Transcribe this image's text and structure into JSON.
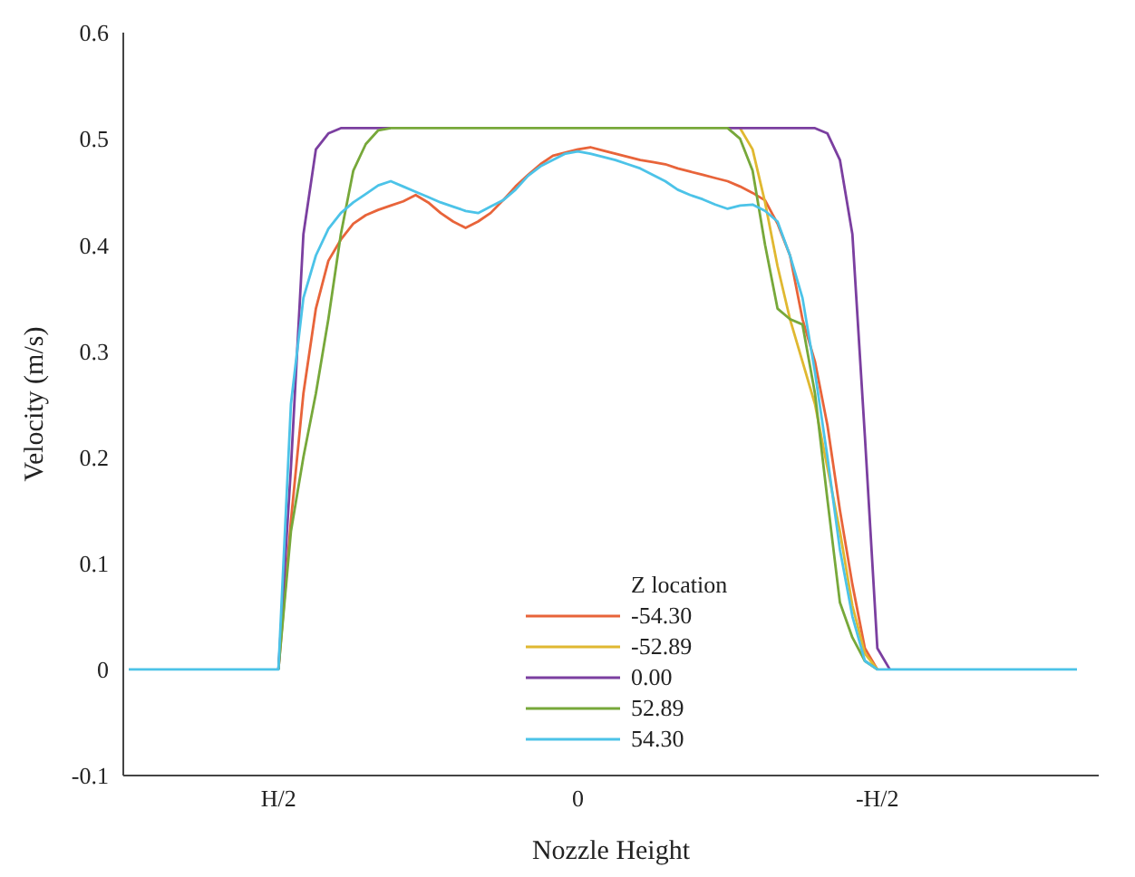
{
  "chart_data": {
    "type": "line",
    "xlabel": "Nozzle Height",
    "ylabel": "Velocity (m/s)",
    "legend_title": "Z location",
    "legend": "bottom",
    "grid": false,
    "marker": "none",
    "line_style": "solid",
    "categories": [
      null,
      null,
      null,
      null,
      null,
      null,
      null,
      null,
      null,
      null,
      null,
      null,
      "H/2",
      null,
      null,
      null,
      null,
      null,
      null,
      null,
      null,
      null,
      null,
      null,
      null,
      null,
      null,
      null,
      null,
      null,
      null,
      null,
      null,
      null,
      null,
      null,
      "0",
      null,
      null,
      null,
      null,
      null,
      null,
      null,
      null,
      null,
      null,
      null,
      null,
      null,
      null,
      null,
      null,
      null,
      null,
      null,
      null,
      null,
      null,
      null,
      "-H/2",
      null,
      null,
      null,
      null,
      null,
      null,
      null,
      null,
      null,
      null,
      null,
      null,
      null,
      null,
      null,
      null
    ],
    "ylim": [
      -0.1,
      0.6
    ],
    "yticks": [
      -0.1,
      0,
      0.1,
      0.2,
      0.3,
      0.4,
      0.5,
      0.6
    ],
    "series": [
      {
        "name": "-54.30",
        "color": "#e8643a",
        "values": [
          null,
          null,
          null,
          null,
          null,
          null,
          null,
          null,
          null,
          null,
          null,
          null,
          0,
          0.14,
          0.26,
          0.34,
          0.385,
          0.405,
          0.42,
          0.428,
          0.433,
          0.437,
          0.441,
          0.447,
          0.44,
          0.43,
          0.422,
          0.416,
          0.422,
          0.43,
          0.442,
          0.455,
          0.466,
          0.476,
          0.484,
          0.487,
          0.49,
          0.492,
          0.489,
          0.486,
          0.483,
          0.48,
          0.478,
          0.476,
          0.472,
          0.469,
          0.466,
          0.463,
          0.46,
          0.455,
          0.449,
          0.442,
          0.42,
          0.39,
          0.33,
          0.29,
          0.23,
          0.15,
          0.08,
          0.02,
          0,
          null,
          null,
          null,
          null,
          null,
          null,
          null,
          null,
          null,
          null,
          null,
          null,
          null,
          null,
          null,
          null
        ]
      },
      {
        "name": "-52.89",
        "color": "#e0b830",
        "values": [
          null,
          null,
          null,
          null,
          null,
          null,
          null,
          null,
          null,
          null,
          null,
          null,
          null,
          null,
          null,
          null,
          null,
          null,
          null,
          null,
          null,
          null,
          null,
          null,
          null,
          null,
          null,
          null,
          null,
          null,
          null,
          null,
          null,
          null,
          null,
          null,
          null,
          null,
          null,
          null,
          null,
          null,
          null,
          null,
          null,
          null,
          null,
          null,
          null,
          0.51,
          0.49,
          0.44,
          0.38,
          0.33,
          0.29,
          0.25,
          0.19,
          0.13,
          0.06,
          0.015,
          0,
          null,
          null,
          null,
          null,
          null,
          null,
          null,
          null,
          null,
          null,
          null,
          null,
          null,
          null,
          null,
          null
        ]
      },
      {
        "name": "0.00",
        "color": "#7b3fa0",
        "values": [
          null,
          null,
          null,
          null,
          null,
          null,
          null,
          null,
          null,
          null,
          null,
          null,
          0,
          0.19,
          0.41,
          0.49,
          0.505,
          0.51,
          0.51,
          0.51,
          0.51,
          0.51,
          null,
          null,
          null,
          null,
          null,
          null,
          null,
          null,
          null,
          null,
          null,
          null,
          null,
          null,
          null,
          null,
          null,
          null,
          null,
          null,
          null,
          null,
          null,
          null,
          null,
          null,
          0.51,
          0.51,
          0.51,
          0.51,
          0.51,
          0.51,
          0.51,
          0.51,
          0.505,
          0.48,
          0.41,
          0.22,
          0.02,
          0,
          null,
          null,
          null,
          null,
          null,
          null,
          null,
          null,
          null,
          null,
          null,
          null,
          null,
          null,
          null
        ]
      },
      {
        "name": "52.89",
        "color": "#77a83a",
        "values": [
          null,
          null,
          null,
          null,
          null,
          null,
          null,
          null,
          null,
          null,
          null,
          null,
          0,
          0.13,
          0.2,
          0.26,
          0.33,
          0.41,
          0.47,
          0.495,
          0.508,
          0.51,
          0.51,
          0.51,
          0.51,
          0.51,
          0.51,
          0.51,
          0.51,
          0.51,
          0.51,
          0.51,
          0.51,
          0.51,
          0.51,
          0.51,
          0.51,
          0.51,
          0.51,
          0.51,
          0.51,
          0.51,
          0.51,
          0.51,
          0.51,
          0.51,
          0.51,
          0.51,
          0.51,
          0.5,
          0.47,
          0.4,
          0.34,
          0.33,
          0.325,
          0.26,
          0.16,
          0.063,
          0.03,
          0.008,
          0,
          null,
          null,
          null,
          null,
          null,
          null,
          null,
          null,
          null,
          null,
          null,
          null,
          null,
          null,
          null,
          null
        ]
      },
      {
        "name": "54.30",
        "color": "#4cc3e8",
        "values": [
          0,
          0,
          0,
          0,
          0,
          0,
          0,
          0,
          0,
          0,
          0,
          0,
          0,
          0.25,
          0.35,
          0.39,
          0.415,
          0.43,
          0.44,
          0.448,
          0.456,
          0.46,
          0.455,
          0.45,
          0.445,
          0.44,
          0.436,
          0.432,
          0.43,
          0.436,
          0.442,
          0.452,
          0.465,
          0.474,
          0.48,
          0.486,
          0.488,
          0.486,
          0.483,
          0.48,
          0.476,
          0.472,
          0.466,
          0.46,
          0.452,
          0.447,
          0.443,
          0.438,
          0.434,
          0.437,
          0.438,
          0.432,
          0.422,
          0.39,
          0.35,
          0.28,
          0.2,
          0.113,
          0.05,
          0.008,
          0,
          0,
          0,
          0,
          0,
          0,
          0,
          0,
          0,
          0,
          0,
          0,
          0,
          0,
          0,
          0,
          0
        ]
      }
    ]
  }
}
